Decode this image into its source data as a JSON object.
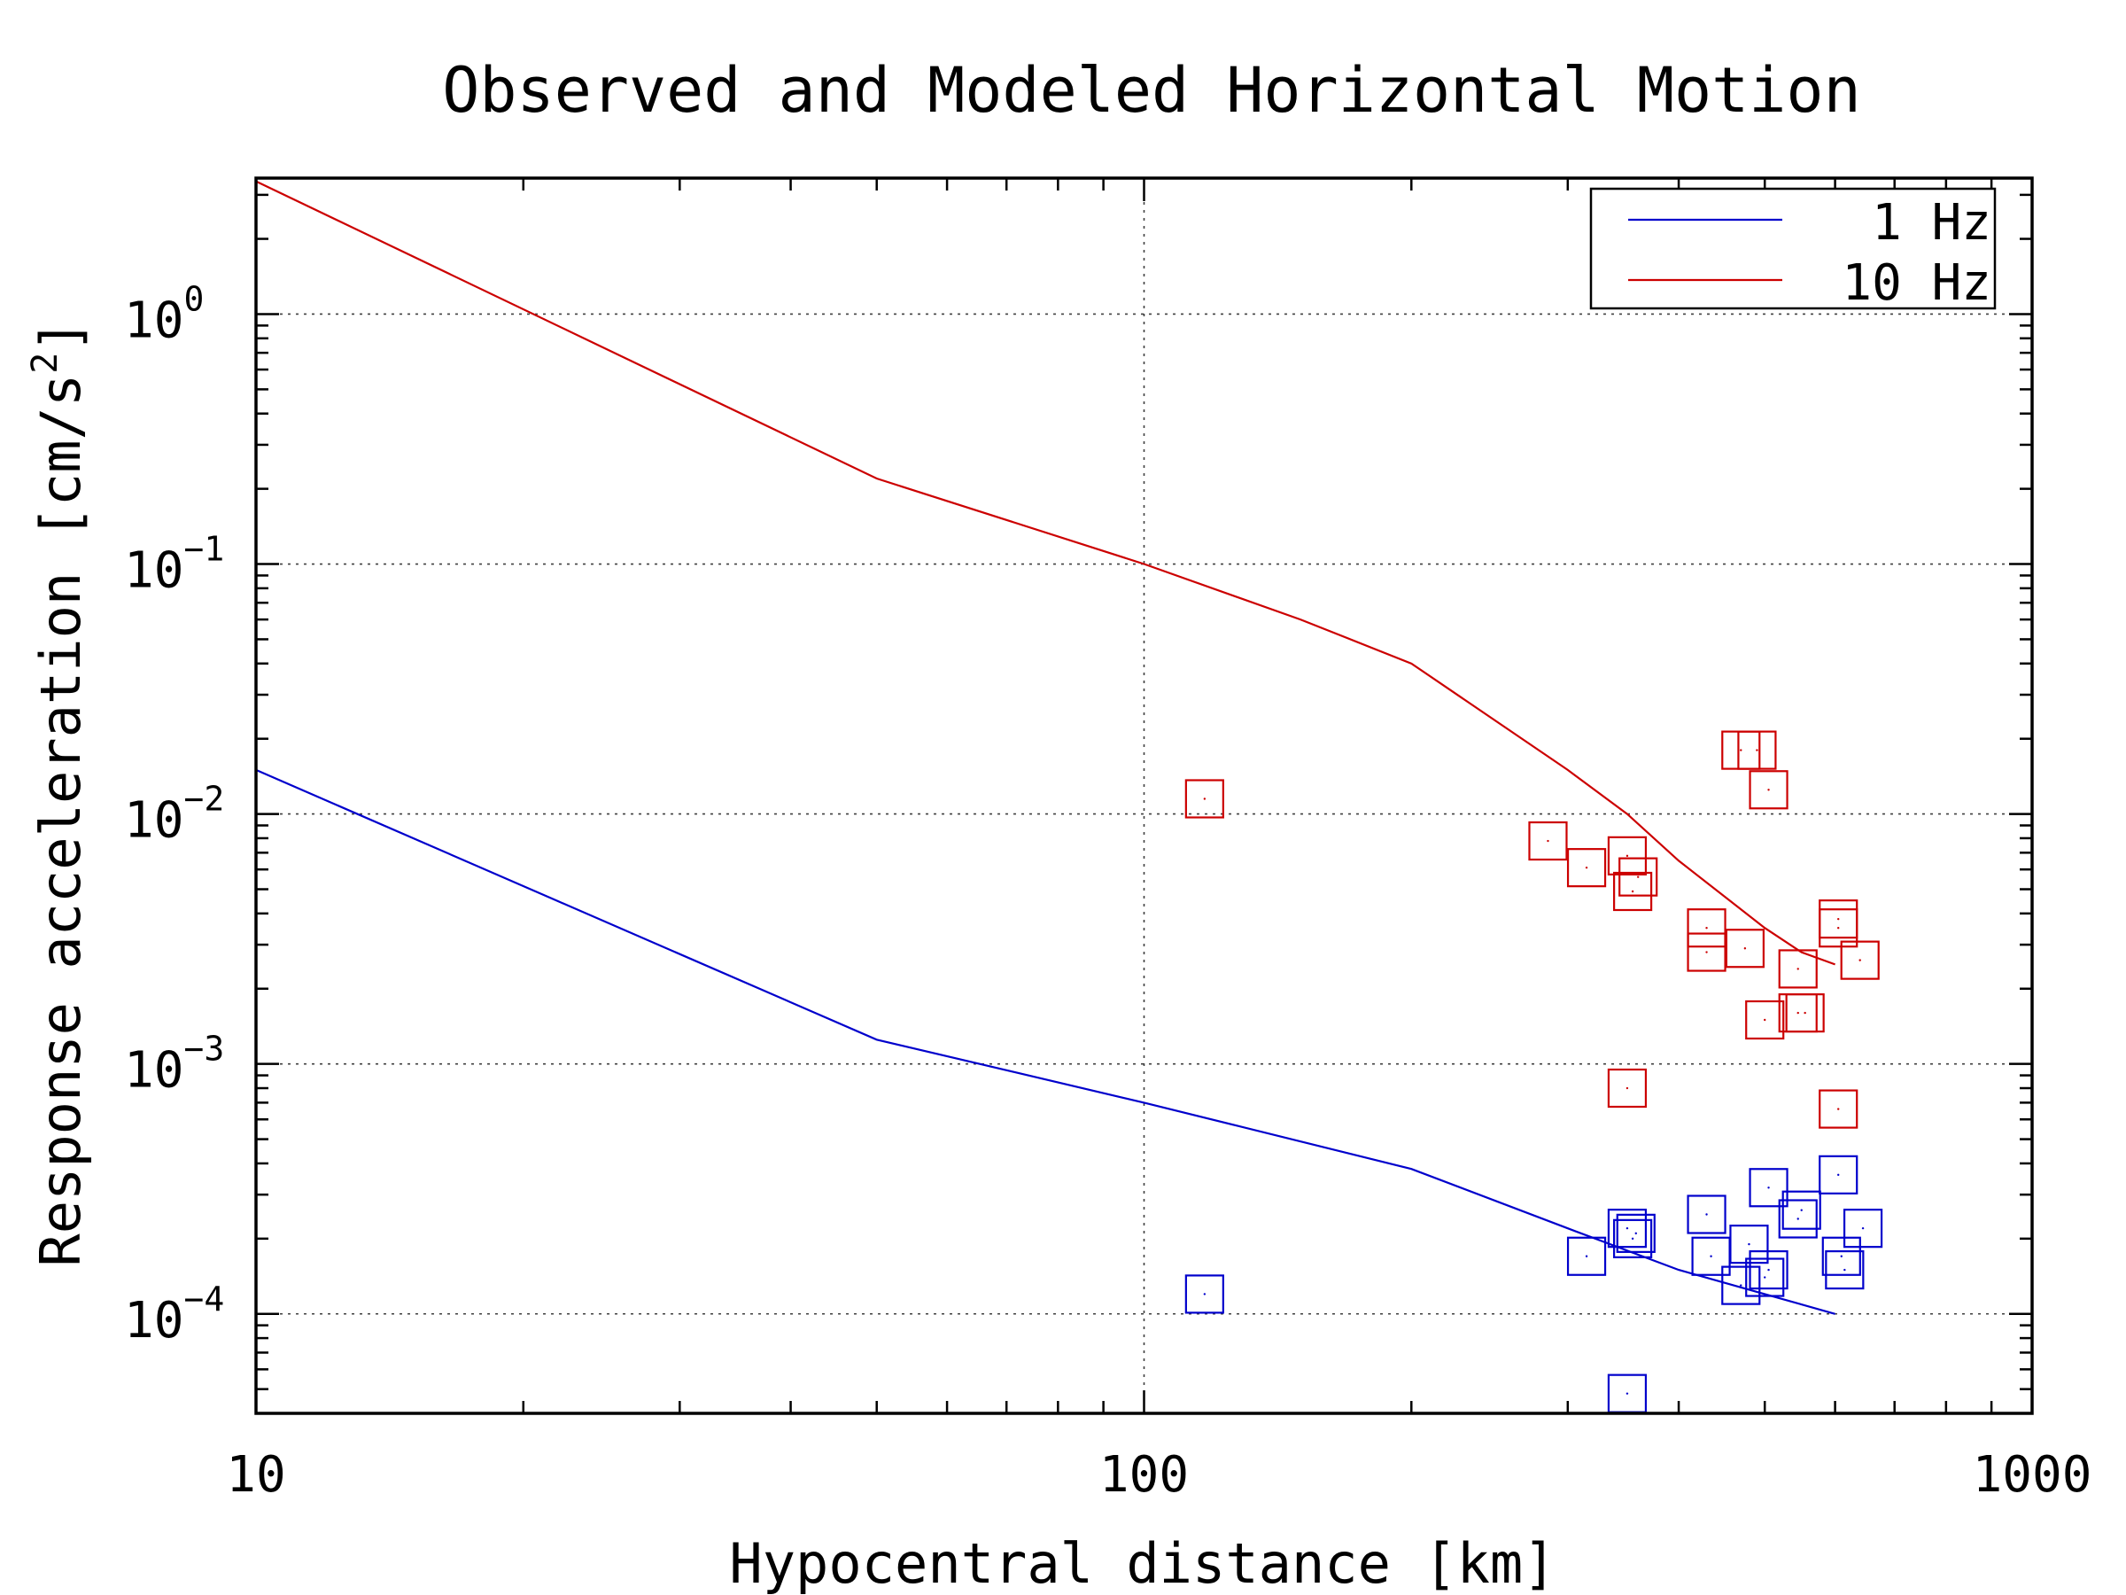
{
  "chart_data": {
    "type": "line",
    "title": "Observed and Modeled Horizontal Motion",
    "xlabel": "Hypocentral distance [km]",
    "ylabel": "Response acceleration [cm/s2]",
    "ylabel_base": "Response acceleration [cm/s",
    "ylabel_exp": "2",
    "ylabel_close": "]",
    "x_scale": "log",
    "y_scale": "log",
    "xlim": [
      10,
      1000
    ],
    "ylim": [
      4e-05,
      3.5
    ],
    "x_ticks": [
      {
        "value": 10,
        "label": "10"
      },
      {
        "value": 100,
        "label": "100"
      },
      {
        "value": 1000,
        "label": "1000"
      }
    ],
    "y_ticks": [
      {
        "value": 1,
        "base": "10",
        "exp": "0"
      },
      {
        "value": 0.1,
        "base": "10",
        "exp": "−1"
      },
      {
        "value": 0.01,
        "base": "10",
        "exp": "−2"
      },
      {
        "value": 0.001,
        "base": "10",
        "exp": "−3"
      },
      {
        "value": 0.0001,
        "base": "10",
        "exp": "−4"
      }
    ],
    "grid": true,
    "legend_position": "top-right",
    "series": [
      {
        "name": "1 Hz",
        "color": "#0000cc",
        "line": {
          "x": [
            10,
            50,
            100,
            200,
            300,
            400,
            500,
            600
          ],
          "y": [
            0.015,
            0.00125,
            0.0007,
            0.00038,
            0.00022,
            0.00015,
            0.00012,
            0.0001
          ]
        },
        "points": {
          "x": [
            117,
            350,
            315,
            350,
            355,
            358,
            430,
            435,
            470,
            480,
            500,
            505,
            505,
            545,
            550,
            605,
            610,
            615,
            645
          ],
          "y": [
            0.00012,
            4.8e-05,
            0.00017,
            0.00022,
            0.0002,
            0.00021,
            0.00025,
            0.00017,
            0.00013,
            0.00019,
            0.00014,
            0.00032,
            0.00015,
            0.00024,
            0.00026,
            0.00036,
            0.00017,
            0.00015,
            0.00022
          ]
        }
      },
      {
        "name": "10 Hz",
        "color": "#cc0000",
        "line": {
          "x": [
            10,
            50,
            100,
            150,
            200,
            300,
            350,
            400,
            500,
            550,
            600
          ],
          "y": [
            3.4,
            0.22,
            0.1,
            0.06,
            0.04,
            0.015,
            0.01,
            0.0065,
            0.0035,
            0.0028,
            0.0025
          ]
        },
        "points": {
          "x": [
            117,
            285,
            315,
            350,
            350,
            360,
            355,
            430,
            430,
            475,
            470,
            490,
            505,
            500,
            545,
            545,
            555,
            605,
            605,
            605,
            640
          ],
          "y": [
            0.0115,
            0.0078,
            0.0061,
            0.0068,
            0.0008,
            0.0056,
            0.0049,
            0.0035,
            0.0028,
            0.0029,
            0.018,
            0.018,
            0.0125,
            0.0015,
            0.0024,
            0.0016,
            0.0016,
            0.00066,
            0.0038,
            0.0035,
            0.0026
          ]
        }
      }
    ]
  }
}
